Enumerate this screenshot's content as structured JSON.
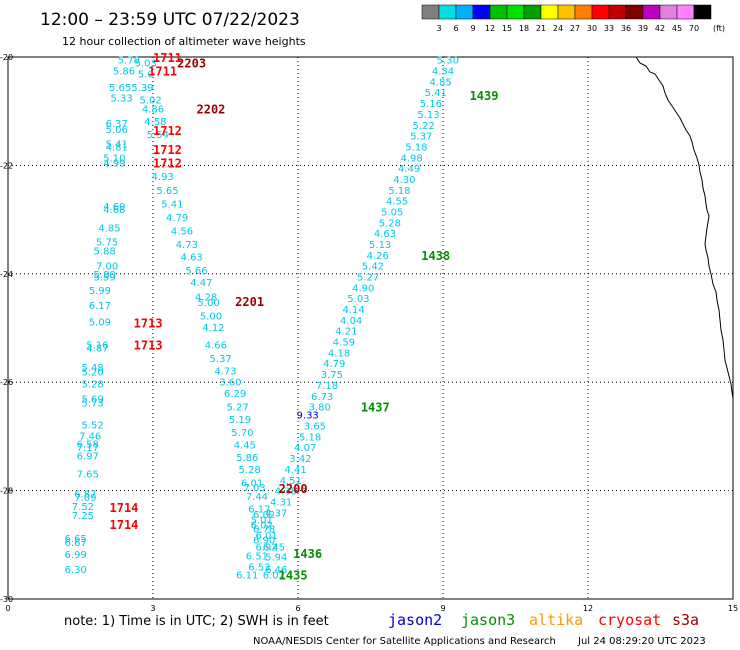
{
  "header": {
    "title": "12:00 – 23:59 UTC 07/22/2023",
    "subtitle": "12 hour collection of altimeter wave heights"
  },
  "colorbar": {
    "colors": [
      "#808080",
      "#00e0e0",
      "#00b0ff",
      "#0000ff",
      "#00c000",
      "#00e000",
      "#00a000",
      "#ffff00",
      "#ffc000",
      "#ff8000",
      "#ff0000",
      "#c00000",
      "#800000",
      "#c000c0",
      "#e080e0",
      "#ff80ff",
      "#000000"
    ],
    "labels": [
      "3",
      "6",
      "9",
      "12",
      "15",
      "18",
      "21",
      "24",
      "27",
      "30",
      "33",
      "36",
      "39",
      "42",
      "45",
      "70"
    ],
    "unit": "(ft)"
  },
  "footer": {
    "note": "note: 1) Time is in UTC; 2) SWH is in feet",
    "credit": "NOAA/NESDIS Center for Satellite Applications and Research",
    "timestamp": "Jul 24 08:29:20 UTC 2023"
  },
  "satellites": [
    {
      "name": "jason2",
      "color": "#0000cc"
    },
    {
      "name": "jason3",
      "color": "#009000"
    },
    {
      "name": "altika",
      "color": "#ff9900"
    },
    {
      "name": "cryosat",
      "color": "#ff0000"
    },
    {
      "name": "s3a",
      "color": "#990000"
    }
  ],
  "chart_data": {
    "type": "scatter",
    "title": "12:00 – 23:59 UTC 07/22/2023",
    "subtitle": "12 hour collection of altimeter wave heights",
    "xlim": [
      0,
      15
    ],
    "ylim": [
      -30,
      -20
    ],
    "xticks": [
      "0",
      "3",
      "6",
      "9",
      "12",
      "15"
    ],
    "yticks": [
      "-20",
      "-22",
      "-24",
      "-26",
      "-28",
      "-30"
    ],
    "grid": true,
    "points": [
      {
        "x": 2.5,
        "y": -20.05,
        "v": "5.78"
      },
      {
        "x": 2.85,
        "y": -20.1,
        "v": "5.03"
      },
      {
        "x": 2.4,
        "y": -20.25,
        "v": "5.86"
      },
      {
        "x": 2.85,
        "y": -20.3,
        "v": "5.0"
      },
      {
        "x": 2.55,
        "y": -20.55,
        "v": "5.655.39"
      },
      {
        "x": 2.35,
        "y": -20.75,
        "v": "5.33"
      },
      {
        "x": 2.95,
        "y": -20.78,
        "v": "5.02"
      },
      {
        "x": 3.0,
        "y": -20.95,
        "v": "4.86"
      },
      {
        "x": 3.05,
        "y": -21.18,
        "v": "4.58"
      },
      {
        "x": 2.25,
        "y": -21.22,
        "v": "6.37"
      },
      {
        "x": 2.25,
        "y": -21.33,
        "v": "5.06"
      },
      {
        "x": 3.1,
        "y": -21.42,
        "v": "5.54"
      },
      {
        "x": 2.25,
        "y": -21.6,
        "v": "5.41"
      },
      {
        "x": 2.25,
        "y": -21.65,
        "v": "4.81"
      },
      {
        "x": 2.2,
        "y": -21.85,
        "v": "5.10"
      },
      {
        "x": 2.2,
        "y": -21.95,
        "v": "4.99"
      },
      {
        "x": 3.2,
        "y": -22.2,
        "v": "4.93"
      },
      {
        "x": 3.3,
        "y": -22.45,
        "v": "5.65"
      },
      {
        "x": 3.4,
        "y": -22.7,
        "v": "5.41"
      },
      {
        "x": 3.5,
        "y": -22.95,
        "v": "4.79"
      },
      {
        "x": 2.2,
        "y": -22.75,
        "v": "4.69"
      },
      {
        "x": 2.2,
        "y": -22.8,
        "v": "4.68"
      },
      {
        "x": 3.6,
        "y": -23.2,
        "v": "4.56"
      },
      {
        "x": 2.1,
        "y": -23.15,
        "v": "4.85"
      },
      {
        "x": 3.7,
        "y": -23.45,
        "v": "4.73"
      },
      {
        "x": 2.05,
        "y": -23.4,
        "v": "5.75"
      },
      {
        "x": 2.0,
        "y": -23.57,
        "v": "5.88"
      },
      {
        "x": 3.8,
        "y": -23.68,
        "v": "4.63"
      },
      {
        "x": 3.9,
        "y": -23.93,
        "v": "5.66"
      },
      {
        "x": 2.05,
        "y": -23.85,
        "v": "7.00"
      },
      {
        "x": 2.0,
        "y": -24.0,
        "v": "5.80"
      },
      {
        "x": 2.0,
        "y": -24.05,
        "v": "5.59"
      },
      {
        "x": 4.0,
        "y": -24.15,
        "v": "4.47"
      },
      {
        "x": 1.9,
        "y": -24.3,
        "v": "5.99"
      },
      {
        "x": 4.1,
        "y": -24.42,
        "v": "4.28"
      },
      {
        "x": 4.15,
        "y": -24.52,
        "v": "5.00"
      },
      {
        "x": 1.9,
        "y": -24.58,
        "v": "6.17"
      },
      {
        "x": 4.2,
        "y": -24.77,
        "v": "5.00"
      },
      {
        "x": 1.9,
        "y": -24.88,
        "v": "5.09"
      },
      {
        "x": 4.25,
        "y": -24.98,
        "v": "4.12"
      },
      {
        "x": 1.85,
        "y": -25.3,
        "v": "5.16"
      },
      {
        "x": 1.85,
        "y": -25.36,
        "v": "4.87"
      },
      {
        "x": 4.3,
        "y": -25.3,
        "v": "4.66"
      },
      {
        "x": 4.4,
        "y": -25.55,
        "v": "5.37"
      },
      {
        "x": 1.75,
        "y": -25.72,
        "v": "5.48"
      },
      {
        "x": 1.75,
        "y": -25.8,
        "v": "5.20"
      },
      {
        "x": 4.5,
        "y": -25.78,
        "v": "4.73"
      },
      {
        "x": 4.6,
        "y": -25.99,
        "v": "3.60"
      },
      {
        "x": 1.75,
        "y": -26.02,
        "v": "5.28"
      },
      {
        "x": 4.7,
        "y": -26.2,
        "v": "6.29"
      },
      {
        "x": 1.75,
        "y": -26.3,
        "v": "5.69"
      },
      {
        "x": 1.75,
        "y": -26.37,
        "v": "5.73"
      },
      {
        "x": 4.75,
        "y": -26.45,
        "v": "5.27"
      },
      {
        "x": 1.75,
        "y": -26.78,
        "v": "5.52"
      },
      {
        "x": 4.8,
        "y": -26.68,
        "v": "5.19"
      },
      {
        "x": 1.7,
        "y": -26.98,
        "v": "7.46"
      },
      {
        "x": 4.85,
        "y": -26.92,
        "v": "5.70"
      },
      {
        "x": 1.65,
        "y": -27.13,
        "v": "6.58"
      },
      {
        "x": 1.65,
        "y": -27.2,
        "v": "7.17"
      },
      {
        "x": 4.9,
        "y": -27.15,
        "v": "4.45"
      },
      {
        "x": 1.65,
        "y": -27.35,
        "v": "6.97"
      },
      {
        "x": 4.95,
        "y": -27.38,
        "v": "5.86"
      },
      {
        "x": 5.0,
        "y": -27.6,
        "v": "5.28"
      },
      {
        "x": 1.65,
        "y": -27.68,
        "v": "7.65"
      },
      {
        "x": 5.05,
        "y": -27.85,
        "v": "6.01"
      },
      {
        "x": 5.1,
        "y": -27.93,
        "v": "7.03"
      },
      {
        "x": 1.6,
        "y": -28.05,
        "v": "6.87"
      },
      {
        "x": 1.6,
        "y": -28.12,
        "v": "7.09"
      },
      {
        "x": 5.15,
        "y": -28.1,
        "v": "7.44"
      },
      {
        "x": 1.55,
        "y": -28.28,
        "v": "7.52"
      },
      {
        "x": 5.2,
        "y": -28.33,
        "v": "6.17"
      },
      {
        "x": 5.3,
        "y": -28.43,
        "v": "6.02"
      },
      {
        "x": 1.55,
        "y": -28.45,
        "v": "7.25"
      },
      {
        "x": 5.25,
        "y": -28.53,
        "v": "5.01"
      },
      {
        "x": 5.25,
        "y": -28.63,
        "v": "6.02"
      },
      {
        "x": 5.3,
        "y": -28.7,
        "v": "6.78"
      },
      {
        "x": 5.35,
        "y": -28.82,
        "v": "6.01"
      },
      {
        "x": 5.3,
        "y": -28.9,
        "v": "6.90"
      },
      {
        "x": 1.4,
        "y": -28.87,
        "v": "6.65"
      },
      {
        "x": 1.4,
        "y": -28.95,
        "v": "6.67"
      },
      {
        "x": 5.35,
        "y": -29.03,
        "v": "6.92"
      },
      {
        "x": 5.5,
        "y": -29.03,
        "v": "6.45"
      },
      {
        "x": 1.4,
        "y": -29.17,
        "v": "6.99"
      },
      {
        "x": 5.15,
        "y": -29.2,
        "v": "6.51"
      },
      {
        "x": 5.55,
        "y": -29.22,
        "v": "5.94"
      },
      {
        "x": 5.2,
        "y": -29.4,
        "v": "6.53"
      },
      {
        "x": 5.55,
        "y": -29.45,
        "v": "6.46"
      },
      {
        "x": 1.4,
        "y": -29.45,
        "v": "6.30"
      },
      {
        "x": 4.95,
        "y": -29.55,
        "v": "6.11"
      },
      {
        "x": 5.5,
        "y": -29.55,
        "v": "6.02"
      },
      {
        "x": 9.1,
        "y": -20.05,
        "v": "5.30"
      },
      {
        "x": 9.0,
        "y": -20.25,
        "v": "4.34"
      },
      {
        "x": 8.95,
        "y": -20.45,
        "v": "4.85"
      },
      {
        "x": 8.85,
        "y": -20.65,
        "v": "5.41"
      },
      {
        "x": 8.75,
        "y": -20.85,
        "v": "5.16"
      },
      {
        "x": 8.7,
        "y": -21.05,
        "v": "5.13"
      },
      {
        "x": 8.6,
        "y": -21.25,
        "v": "5.22"
      },
      {
        "x": 8.55,
        "y": -21.45,
        "v": "5.37"
      },
      {
        "x": 8.45,
        "y": -21.65,
        "v": "5.18"
      },
      {
        "x": 8.35,
        "y": -21.85,
        "v": "4.98"
      },
      {
        "x": 8.3,
        "y": -22.05,
        "v": "4.49"
      },
      {
        "x": 8.2,
        "y": -22.25,
        "v": "4.30"
      },
      {
        "x": 8.1,
        "y": -22.45,
        "v": "5.18"
      },
      {
        "x": 8.05,
        "y": -22.65,
        "v": "4.55"
      },
      {
        "x": 7.95,
        "y": -22.85,
        "v": "5.05"
      },
      {
        "x": 7.9,
        "y": -23.05,
        "v": "5.28"
      },
      {
        "x": 7.8,
        "y": -23.25,
        "v": "4.63"
      },
      {
        "x": 7.7,
        "y": -23.45,
        "v": "5.13"
      },
      {
        "x": 7.65,
        "y": -23.65,
        "v": "4.26"
      },
      {
        "x": 7.55,
        "y": -23.85,
        "v": "5.42"
      },
      {
        "x": 7.45,
        "y": -24.05,
        "v": "5.27"
      },
      {
        "x": 7.35,
        "y": -24.25,
        "v": "4.90"
      },
      {
        "x": 7.25,
        "y": -24.45,
        "v": "5.03"
      },
      {
        "x": 7.15,
        "y": -24.65,
        "v": "4.14"
      },
      {
        "x": 7.1,
        "y": -24.85,
        "v": "4.04"
      },
      {
        "x": 7.0,
        "y": -25.05,
        "v": "4.21"
      },
      {
        "x": 6.95,
        "y": -25.25,
        "v": "4.59"
      },
      {
        "x": 6.85,
        "y": -25.45,
        "v": "4.18"
      },
      {
        "x": 6.75,
        "y": -25.65,
        "v": "4.79"
      },
      {
        "x": 6.7,
        "y": -25.85,
        "v": "3.75"
      },
      {
        "x": 6.6,
        "y": -26.05,
        "v": "7.18"
      },
      {
        "x": 6.5,
        "y": -26.25,
        "v": "6.73"
      },
      {
        "x": 6.45,
        "y": -26.45,
        "v": "3.80"
      },
      {
        "x": 6.35,
        "y": -26.8,
        "v": "3.65"
      },
      {
        "x": 6.25,
        "y": -27.0,
        "v": "5.18"
      },
      {
        "x": 6.15,
        "y": -27.2,
        "v": "4.07"
      },
      {
        "x": 6.05,
        "y": -27.4,
        "v": "3.42"
      },
      {
        "x": 5.95,
        "y": -27.6,
        "v": "4.41"
      },
      {
        "x": 5.85,
        "y": -27.8,
        "v": "4.51"
      },
      {
        "x": 5.75,
        "y": -28.0,
        "v": "4.38"
      },
      {
        "x": 5.65,
        "y": -28.2,
        "v": "4.31"
      },
      {
        "x": 5.55,
        "y": -28.4,
        "v": "4.37"
      },
      {
        "x": 6.2,
        "y": -26.6,
        "v": "9.33",
        "sat": "jason2"
      }
    ],
    "labels": [
      {
        "x": 3.0,
        "y": -20.0,
        "text": "1711",
        "sat": "cryosat"
      },
      {
        "x": 3.5,
        "y": -20.1,
        "text": "2203",
        "sat": "s3a"
      },
      {
        "x": 2.9,
        "y": -20.25,
        "text": "1711",
        "sat": "cryosat"
      },
      {
        "x": 3.9,
        "y": -20.95,
        "text": "2202",
        "sat": "s3a"
      },
      {
        "x": 3.0,
        "y": -21.35,
        "text": "1712",
        "sat": "cryosat"
      },
      {
        "x": 3.0,
        "y": -21.7,
        "text": "1712",
        "sat": "cryosat"
      },
      {
        "x": 3.0,
        "y": -21.95,
        "text": "1712",
        "sat": "cryosat"
      },
      {
        "x": 8.55,
        "y": -23.65,
        "text": "1438",
        "sat": "jason3"
      },
      {
        "x": 9.55,
        "y": -20.7,
        "text": "1439",
        "sat": "jason3"
      },
      {
        "x": 4.7,
        "y": -24.5,
        "text": "2201",
        "sat": "s3a"
      },
      {
        "x": 2.6,
        "y": -24.9,
        "text": "1713",
        "sat": "cryosat"
      },
      {
        "x": 2.6,
        "y": -25.3,
        "text": "1713",
        "sat": "cryosat"
      },
      {
        "x": 7.3,
        "y": -26.45,
        "text": "1437",
        "sat": "jason3"
      },
      {
        "x": 5.6,
        "y": -27.95,
        "text": "2200",
        "sat": "s3a"
      },
      {
        "x": 2.1,
        "y": -28.3,
        "text": "1714",
        "sat": "cryosat"
      },
      {
        "x": 2.1,
        "y": -28.62,
        "text": "1714",
        "sat": "cryosat"
      },
      {
        "x": 5.9,
        "y": -29.15,
        "text": "1436",
        "sat": "jason3"
      },
      {
        "x": 5.6,
        "y": -29.55,
        "text": "1435",
        "sat": "jason3"
      }
    ]
  }
}
